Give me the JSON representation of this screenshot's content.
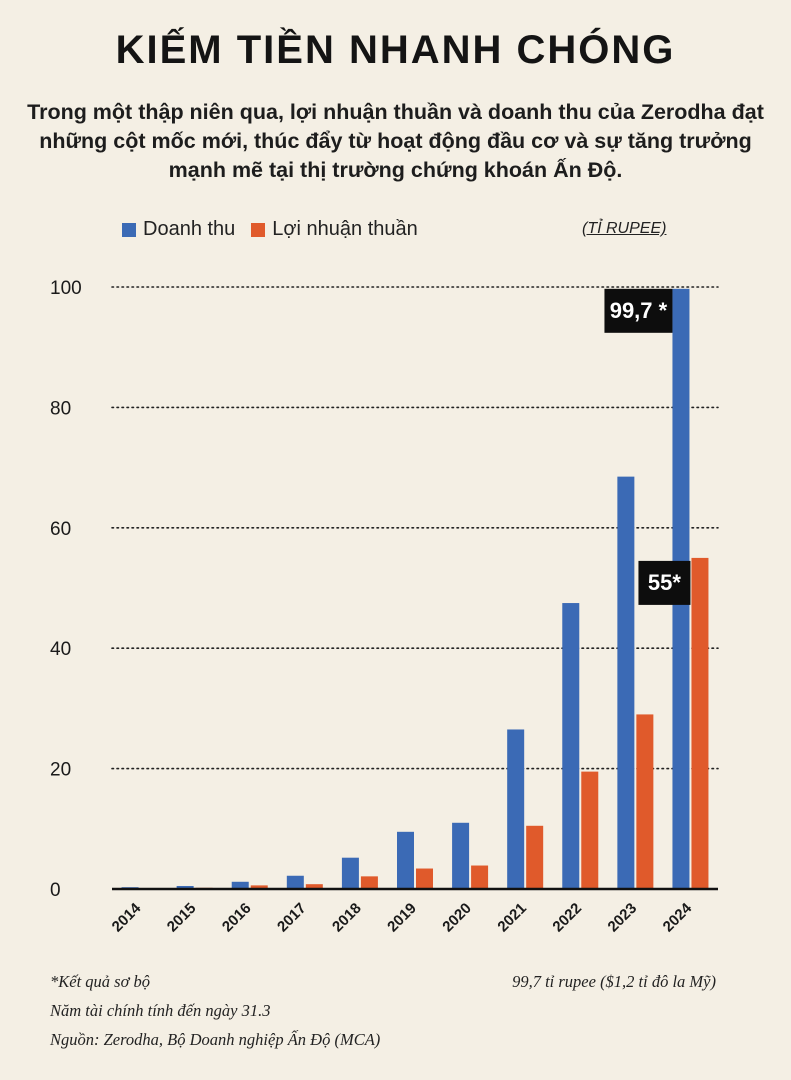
{
  "header": {
    "title": "KIẾM TIỀN NHANH CHÓNG",
    "subtitle": "Trong một thập niên qua, lợi nhuận thuần và doanh thu của Zerodha đạt những cột mốc mới, thúc đẩy từ hoạt động đầu cơ và sự tăng trưởng mạnh mẽ tại thị trường chứng khoán Ấn Độ."
  },
  "legend": {
    "revenue_label": "Doanh thu",
    "profit_label": "Lợi nhuận thuần",
    "unit_label": "(TỈ RUPEE)"
  },
  "colors": {
    "revenue": "#3b6ab5",
    "profit": "#e05a2b",
    "background": "#f4efe4",
    "annotation_bg": "#0d0d0d"
  },
  "chart_data": {
    "type": "bar",
    "title": "KIẾM TIỀN NHANH CHÓNG",
    "ylabel": "TỈ RUPEE",
    "xlabel": "",
    "ylim": [
      0,
      100
    ],
    "yticks": [
      0,
      20,
      40,
      60,
      80,
      100
    ],
    "grid": true,
    "categories": [
      "2014",
      "2015",
      "2016",
      "2017",
      "2018",
      "2019",
      "2020",
      "2021",
      "2022",
      "2023",
      "2024"
    ],
    "series": [
      {
        "name": "Doanh thu",
        "values": [
          0.3,
          0.5,
          1.2,
          2.2,
          5.2,
          9.5,
          11,
          26.5,
          47.5,
          68.5,
          99.7
        ]
      },
      {
        "name": "Lợi nhuận thuần",
        "values": [
          0.1,
          0.2,
          0.6,
          0.8,
          2.1,
          3.4,
          3.9,
          10.5,
          19.5,
          29,
          55
        ]
      }
    ],
    "annotations": [
      {
        "label": "99,7 *",
        "series": "Doanh thu",
        "category": "2024"
      },
      {
        "label": "55*",
        "series": "Lợi nhuận thuần",
        "category": "2024"
      }
    ]
  },
  "footnotes": {
    "preliminary": "*Kết quả sơ bộ",
    "conversion": "99,7 tỉ rupee ($1,2 tỉ đô la Mỹ)",
    "fiscal_year": "Năm tài chính tính đến ngày 31.3",
    "source": "Nguồn: Zerodha, Bộ Doanh nghiệp Ấn Độ (MCA)"
  }
}
